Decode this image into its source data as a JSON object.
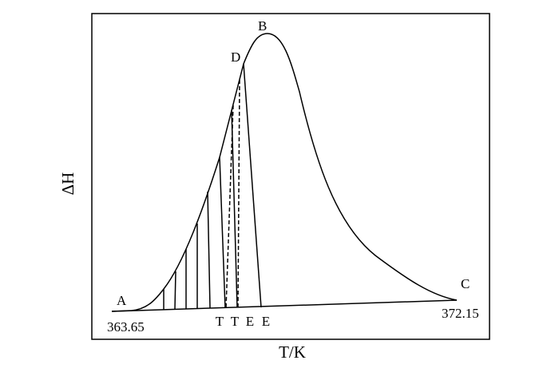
{
  "y_axis_label": "ΔH",
  "x_axis_label": "T/K",
  "points": {
    "A": "A",
    "B": "B",
    "C": "C",
    "D": "D"
  },
  "start_temperature": "363.65",
  "end_temperature": "372.15",
  "marks": [
    "T",
    "T",
    "E",
    "E"
  ]
}
